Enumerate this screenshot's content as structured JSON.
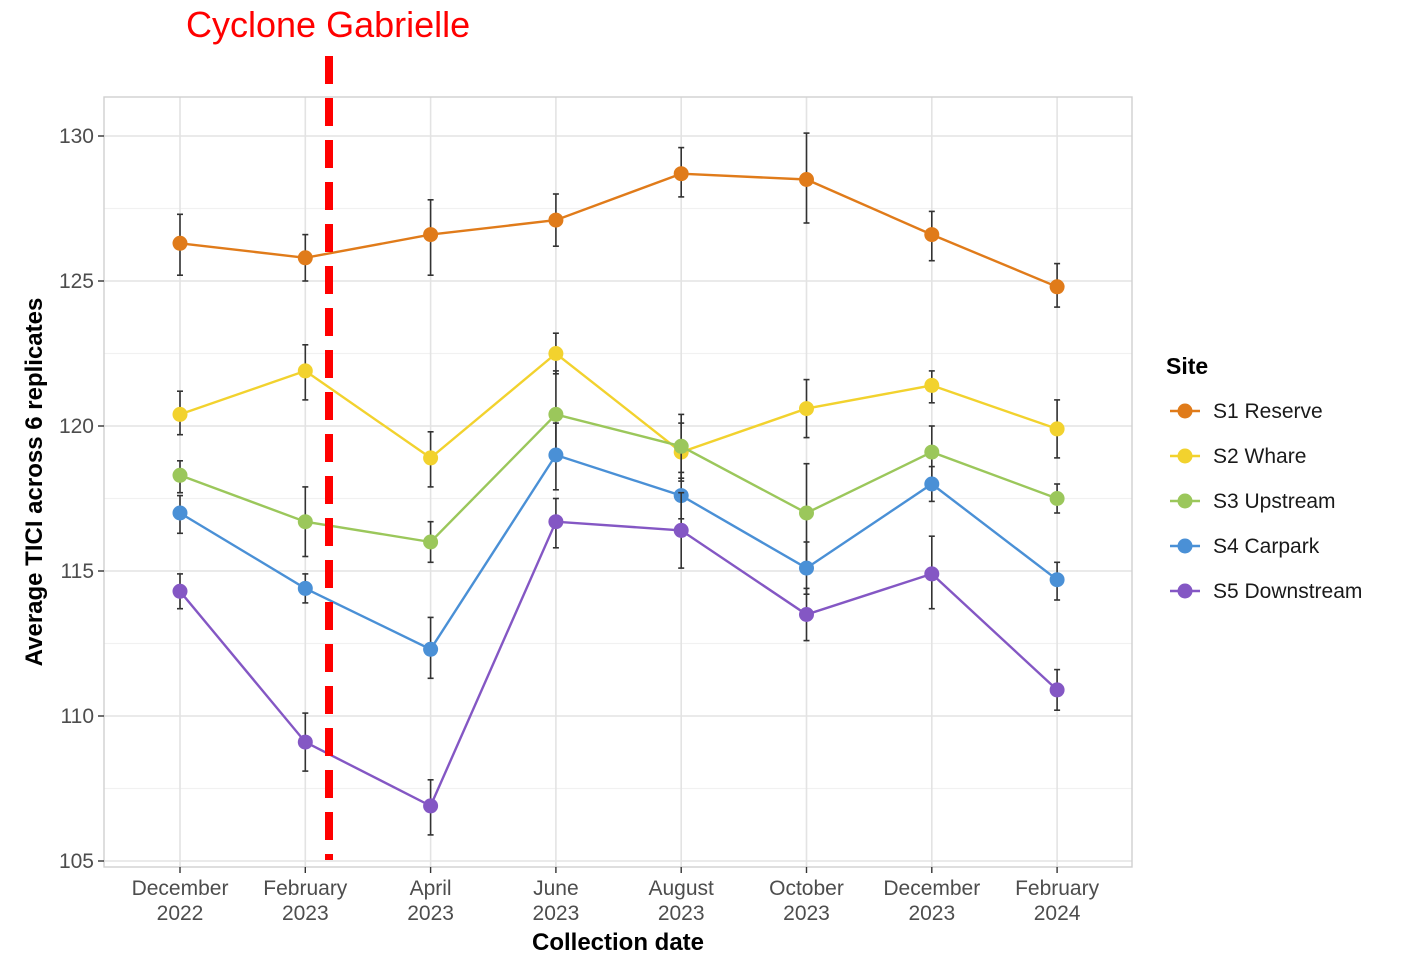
{
  "annotation": {
    "text": "Cyclone Gabrielle",
    "x_position": "between February 2023 and April 2023",
    "color": "#ff0000"
  },
  "chart_data": {
    "type": "line",
    "title": "",
    "xlabel": "Collection date",
    "ylabel": "Average TICI across 6 replicates",
    "ylim": [
      105,
      130
    ],
    "yticks": [
      105,
      110,
      115,
      120,
      125,
      130
    ],
    "grid": true,
    "legend_placement": "right",
    "legend_title": "Site",
    "categories": [
      [
        "December",
        "2022"
      ],
      [
        "February",
        "2023"
      ],
      [
        "April",
        "2023"
      ],
      [
        "June",
        "2023"
      ],
      [
        "August",
        "2023"
      ],
      [
        "October",
        "2023"
      ],
      [
        "December",
        "2023"
      ],
      [
        "February",
        "2024"
      ]
    ],
    "series": [
      {
        "name": "S1 Reserve",
        "color": "#e07b1a",
        "values": [
          126.3,
          125.8,
          126.6,
          127.1,
          128.7,
          128.5,
          126.6,
          124.8
        ],
        "error_low": [
          125.2,
          125.0,
          125.2,
          126.2,
          127.9,
          127.0,
          125.7,
          124.1
        ],
        "error_high": [
          127.3,
          126.6,
          127.8,
          128.0,
          129.6,
          130.1,
          127.4,
          125.6
        ]
      },
      {
        "name": "S2 Whare",
        "color": "#f2d22e",
        "values": [
          120.4,
          121.9,
          118.9,
          122.5,
          119.1,
          120.6,
          121.4,
          119.9
        ],
        "error_low": [
          119.7,
          120.9,
          117.9,
          121.8,
          118.1,
          119.6,
          120.8,
          118.9
        ],
        "error_high": [
          121.2,
          122.8,
          119.8,
          123.2,
          120.1,
          121.6,
          121.9,
          120.9
        ]
      },
      {
        "name": "S3 Upstream",
        "color": "#9bc75b",
        "values": [
          118.3,
          116.7,
          116.0,
          120.4,
          119.3,
          117.0,
          119.1,
          117.5
        ],
        "error_low": [
          117.7,
          115.5,
          115.3,
          118.8,
          118.2,
          115.2,
          118.2,
          117.0
        ],
        "error_high": [
          118.8,
          117.9,
          116.7,
          121.9,
          120.4,
          118.7,
          120.0,
          118.0
        ]
      },
      {
        "name": "S4 Carpark",
        "color": "#4a90d6",
        "values": [
          117.0,
          114.4,
          112.3,
          119.0,
          117.6,
          115.1,
          118.0,
          114.7
        ],
        "error_low": [
          116.3,
          113.9,
          111.3,
          117.8,
          116.8,
          114.2,
          117.4,
          114.0
        ],
        "error_high": [
          117.6,
          114.9,
          113.4,
          120.1,
          118.4,
          116.0,
          118.6,
          115.3
        ]
      },
      {
        "name": "S5 Downstream",
        "color": "#8457c4",
        "values": [
          114.3,
          109.1,
          106.9,
          116.7,
          116.4,
          113.5,
          114.9,
          110.9
        ],
        "error_low": [
          113.7,
          108.1,
          105.9,
          115.8,
          115.1,
          112.6,
          113.7,
          110.2
        ],
        "error_high": [
          114.9,
          110.1,
          107.8,
          117.5,
          117.7,
          114.4,
          116.2,
          111.6
        ]
      }
    ]
  }
}
